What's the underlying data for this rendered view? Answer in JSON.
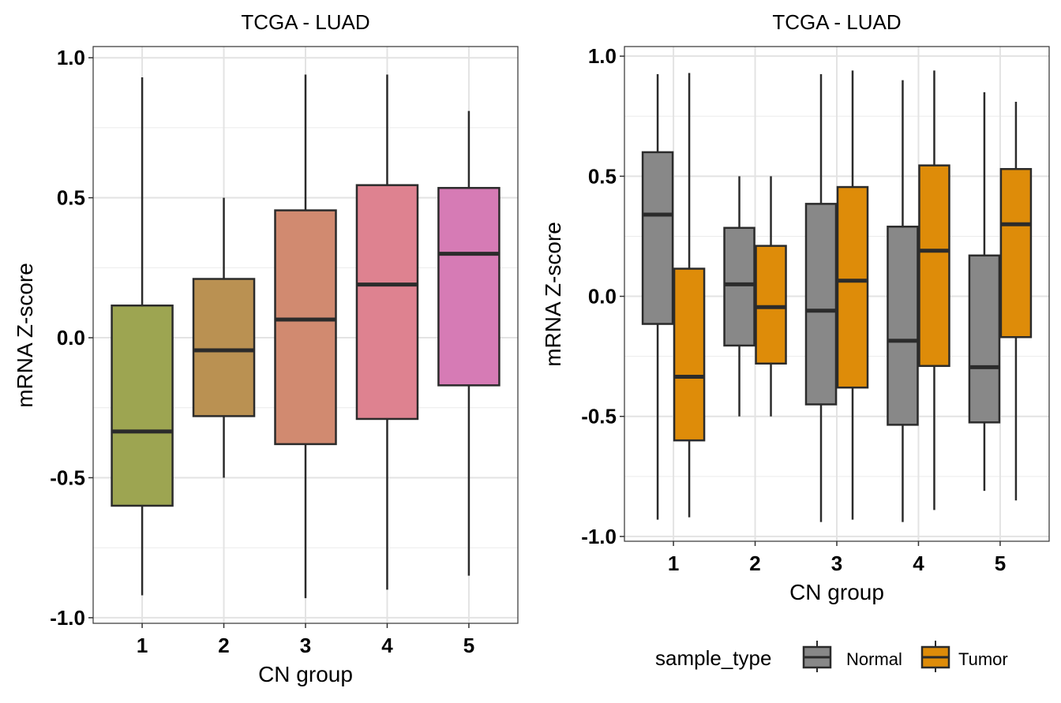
{
  "chart_data": [
    {
      "type": "box",
      "title": "TCGA - LUAD",
      "xlabel": "CN group",
      "ylabel": "mRNA Z-score",
      "categories": [
        "1",
        "2",
        "3",
        "4",
        "5"
      ],
      "ylim": [
        -1.02,
        1.04
      ],
      "yticks": [
        "-1.0",
        "-0.5",
        "0.0",
        "0.5",
        "1.0"
      ],
      "ytick_values": [
        -1.0,
        -0.5,
        0.0,
        0.5,
        1.0
      ],
      "grid": true,
      "colors": [
        "#9DA551",
        "#BA9152",
        "#D18A70",
        "#DE8290",
        "#D67BB5"
      ],
      "boxes": [
        {
          "category": "1",
          "whisker_low": -0.92,
          "q1": -0.6,
          "median": -0.335,
          "q3": 0.115,
          "whisker_high": 0.93
        },
        {
          "category": "2",
          "whisker_low": -0.5,
          "q1": -0.28,
          "median": -0.045,
          "q3": 0.21,
          "whisker_high": 0.5
        },
        {
          "category": "3",
          "whisker_low": -0.93,
          "q1": -0.38,
          "median": 0.065,
          "q3": 0.455,
          "whisker_high": 0.94
        },
        {
          "category": "4",
          "whisker_low": -0.9,
          "q1": -0.29,
          "median": 0.19,
          "q3": 0.545,
          "whisker_high": 0.94
        },
        {
          "category": "5",
          "whisker_low": -0.85,
          "q1": -0.17,
          "median": 0.3,
          "q3": 0.535,
          "whisker_high": 0.81
        }
      ]
    },
    {
      "type": "box",
      "title": "TCGA - LUAD",
      "xlabel": "CN group",
      "ylabel": "mRNA Z-score",
      "categories": [
        "1",
        "2",
        "3",
        "4",
        "5"
      ],
      "ylim": [
        -1.02,
        1.04
      ],
      "yticks": [
        "-1.0",
        "-0.5",
        "0.0",
        "0.5",
        "1.0"
      ],
      "ytick_values": [
        -1.0,
        -0.5,
        0.0,
        0.5,
        1.0
      ],
      "grid": true,
      "legend": {
        "title": "sample_type",
        "placement": "bottom",
        "entries": [
          {
            "name": "Normal",
            "color": "#888888"
          },
          {
            "name": "Tumor",
            "color": "#DE8C09"
          }
        ]
      },
      "series": [
        {
          "name": "Normal",
          "color": "#888888",
          "boxes": [
            {
              "category": "1",
              "whisker_low": -0.93,
              "q1": -0.115,
              "median": 0.34,
              "q3": 0.6,
              "whisker_high": 0.925
            },
            {
              "category": "2",
              "whisker_low": -0.5,
              "q1": -0.205,
              "median": 0.05,
              "q3": 0.285,
              "whisker_high": 0.5
            },
            {
              "category": "3",
              "whisker_low": -0.94,
              "q1": -0.45,
              "median": -0.06,
              "q3": 0.385,
              "whisker_high": 0.925
            },
            {
              "category": "4",
              "whisker_low": -0.94,
              "q1": -0.535,
              "median": -0.185,
              "q3": 0.29,
              "whisker_high": 0.9
            },
            {
              "category": "5",
              "whisker_low": -0.81,
              "q1": -0.525,
              "median": -0.295,
              "q3": 0.17,
              "whisker_high": 0.85
            }
          ]
        },
        {
          "name": "Tumor",
          "color": "#DE8C09",
          "boxes": [
            {
              "category": "1",
              "whisker_low": -0.92,
              "q1": -0.6,
              "median": -0.335,
              "q3": 0.115,
              "whisker_high": 0.93
            },
            {
              "category": "2",
              "whisker_low": -0.5,
              "q1": -0.28,
              "median": -0.045,
              "q3": 0.21,
              "whisker_high": 0.5
            },
            {
              "category": "3",
              "whisker_low": -0.93,
              "q1": -0.38,
              "median": 0.065,
              "q3": 0.455,
              "whisker_high": 0.94
            },
            {
              "category": "4",
              "whisker_low": -0.89,
              "q1": -0.29,
              "median": 0.19,
              "q3": 0.545,
              "whisker_high": 0.94
            },
            {
              "category": "5",
              "whisker_low": -0.85,
              "q1": -0.17,
              "median": 0.3,
              "q3": 0.53,
              "whisker_high": 0.81
            }
          ]
        }
      ]
    }
  ]
}
